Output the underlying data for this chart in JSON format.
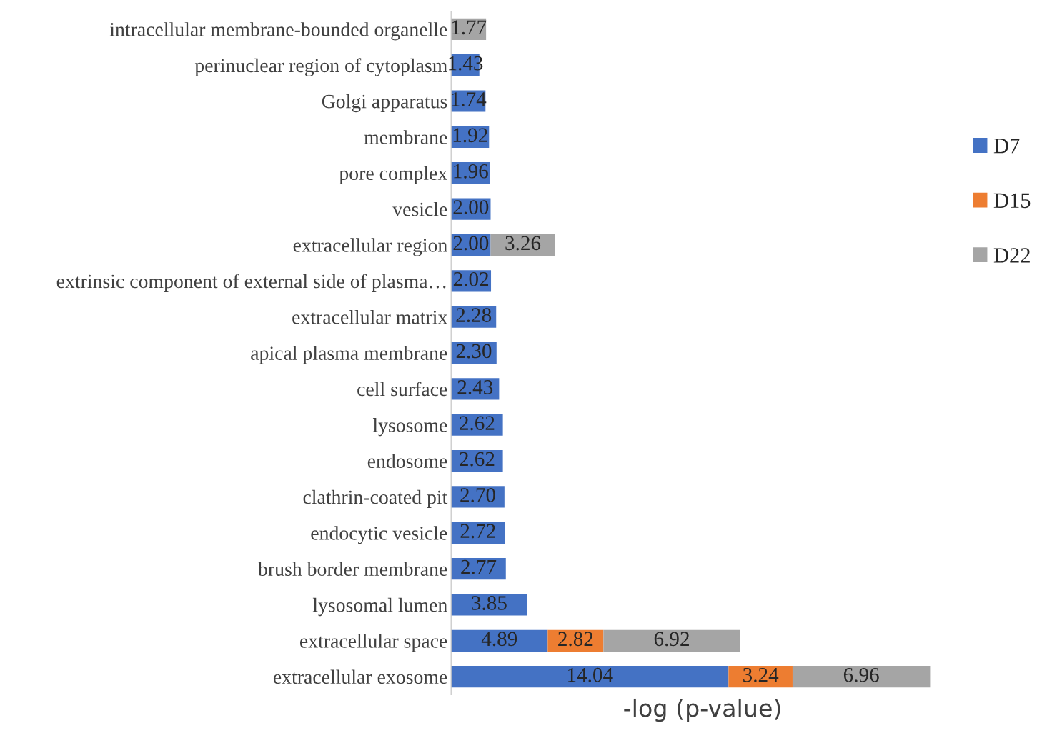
{
  "chart_data": {
    "type": "bar",
    "orientation": "horizontal",
    "stacked": true,
    "xlabel": "-log (p-value)",
    "categories": [
      "intracellular membrane-bounded organelle",
      "perinuclear region of cytoplasm",
      "Golgi apparatus",
      "membrane",
      "pore complex",
      "vesicle",
      "extracellular region",
      "extrinsic component of external side of plasma…",
      "extracellular matrix",
      "apical plasma membrane",
      "cell surface",
      "lysosome",
      "endosome",
      "clathrin-coated pit",
      "endocytic vesicle",
      "brush border membrane",
      "lysosomal lumen",
      "extracellular space",
      "extracellular exosome"
    ],
    "series": [
      {
        "name": "D7",
        "color": "#4472c4",
        "values": [
          null,
          1.43,
          1.74,
          1.92,
          1.96,
          2.0,
          2.0,
          2.02,
          2.28,
          2.3,
          2.43,
          2.62,
          2.62,
          2.7,
          2.72,
          2.77,
          3.85,
          4.89,
          14.04
        ],
        "value_labels": [
          null,
          "1.43",
          "1.74",
          "1.92",
          "1.96",
          "2.00",
          "2.00",
          "2.02",
          "2.28",
          "2.30",
          "2.43",
          "2.62",
          "2.62",
          "2.70",
          "2.72",
          "2.77",
          "3.85",
          "4.89",
          "14.04"
        ]
      },
      {
        "name": "D15",
        "color": "#ed7d31",
        "values": [
          null,
          null,
          null,
          null,
          null,
          null,
          null,
          null,
          null,
          null,
          null,
          null,
          null,
          null,
          null,
          null,
          null,
          2.82,
          3.24
        ],
        "value_labels": [
          null,
          null,
          null,
          null,
          null,
          null,
          null,
          null,
          null,
          null,
          null,
          null,
          null,
          null,
          null,
          null,
          null,
          "2.82",
          "3.24"
        ]
      },
      {
        "name": "D22",
        "color": "#a5a5a5",
        "values": [
          1.77,
          null,
          null,
          null,
          null,
          null,
          3.26,
          null,
          null,
          null,
          null,
          null,
          null,
          null,
          null,
          null,
          null,
          6.92,
          6.96
        ],
        "value_labels": [
          "1.77",
          null,
          null,
          null,
          null,
          null,
          "3.26",
          null,
          null,
          null,
          null,
          null,
          null,
          null,
          null,
          null,
          null,
          "6.92",
          "6.96"
        ]
      }
    ],
    "legend": "right",
    "grid": false,
    "tick_labels": "y"
  }
}
